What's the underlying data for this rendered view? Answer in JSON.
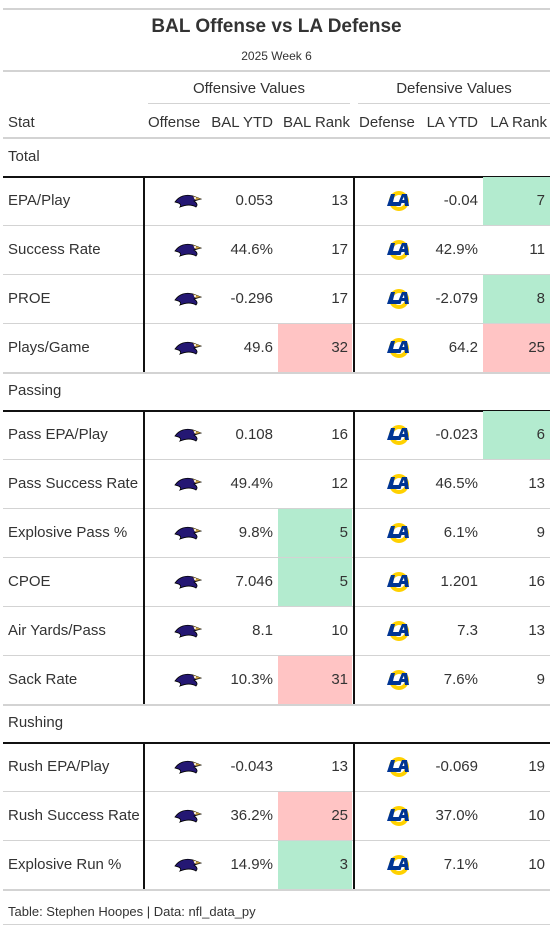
{
  "title": "BAL Offense vs LA Defense",
  "subtitle": "2025 Week 6",
  "spanners": {
    "offense": "Offensive Values",
    "defense": "Defensive Values"
  },
  "columns": {
    "stat": "Stat",
    "offense": "Offense",
    "off_ytd": "BAL YTD",
    "off_rank": "BAL Rank",
    "defense": "Defense",
    "def_ytd": "LA YTD",
    "def_rank": "LA Rank"
  },
  "colors": {
    "good": "#b3ebcf",
    "bad": "#ffc4c4",
    "rule": "#d3d3d3",
    "ravens_purple": "#241773",
    "rams_blue": "#003594",
    "rams_gold": "#ffd100"
  },
  "icons": {
    "offense_logo": "ravens-logo-icon",
    "defense_logo": "rams-logo-icon"
  },
  "footer": "Table: Stephen Hoopes | Data: nfl_data_py",
  "chart_data": {
    "type": "table",
    "groups": [
      {
        "name": "Total",
        "rows": [
          {
            "stat": "EPA/Play",
            "off_ytd": "0.053",
            "off_rank": "13",
            "off_hl": "",
            "def_ytd": "-0.04",
            "def_rank": "7",
            "def_hl": "good"
          },
          {
            "stat": "Success Rate",
            "off_ytd": "44.6%",
            "off_rank": "17",
            "off_hl": "",
            "def_ytd": "42.9%",
            "def_rank": "11",
            "def_hl": ""
          },
          {
            "stat": "PROE",
            "off_ytd": "-0.296",
            "off_rank": "17",
            "off_hl": "",
            "def_ytd": "-2.079",
            "def_rank": "8",
            "def_hl": "good"
          },
          {
            "stat": "Plays/Game",
            "off_ytd": "49.6",
            "off_rank": "32",
            "off_hl": "bad",
            "def_ytd": "64.2",
            "def_rank": "25",
            "def_hl": "bad"
          }
        ]
      },
      {
        "name": "Passing",
        "rows": [
          {
            "stat": "Pass EPA/Play",
            "off_ytd": "0.108",
            "off_rank": "16",
            "off_hl": "",
            "def_ytd": "-0.023",
            "def_rank": "6",
            "def_hl": "good"
          },
          {
            "stat": "Pass Success Rate",
            "off_ytd": "49.4%",
            "off_rank": "12",
            "off_hl": "",
            "def_ytd": "46.5%",
            "def_rank": "13",
            "def_hl": ""
          },
          {
            "stat": "Explosive Pass %",
            "off_ytd": "9.8%",
            "off_rank": "5",
            "off_hl": "good",
            "def_ytd": "6.1%",
            "def_rank": "9",
            "def_hl": ""
          },
          {
            "stat": "CPOE",
            "off_ytd": "7.046",
            "off_rank": "5",
            "off_hl": "good",
            "def_ytd": "1.201",
            "def_rank": "16",
            "def_hl": ""
          },
          {
            "stat": "Air Yards/Pass",
            "off_ytd": "8.1",
            "off_rank": "10",
            "off_hl": "",
            "def_ytd": "7.3",
            "def_rank": "13",
            "def_hl": ""
          },
          {
            "stat": "Sack Rate",
            "off_ytd": "10.3%",
            "off_rank": "31",
            "off_hl": "bad",
            "def_ytd": "7.6%",
            "def_rank": "9",
            "def_hl": ""
          }
        ]
      },
      {
        "name": "Rushing",
        "rows": [
          {
            "stat": "Rush EPA/Play",
            "off_ytd": "-0.043",
            "off_rank": "13",
            "off_hl": "",
            "def_ytd": "-0.069",
            "def_rank": "19",
            "def_hl": ""
          },
          {
            "stat": "Rush Success Rate",
            "off_ytd": "36.2%",
            "off_rank": "25",
            "off_hl": "bad",
            "def_ytd": "37.0%",
            "def_rank": "10",
            "def_hl": ""
          },
          {
            "stat": "Explosive Run %",
            "off_ytd": "14.9%",
            "off_rank": "3",
            "off_hl": "good",
            "def_ytd": "7.1%",
            "def_rank": "10",
            "def_hl": ""
          }
        ]
      }
    ]
  }
}
